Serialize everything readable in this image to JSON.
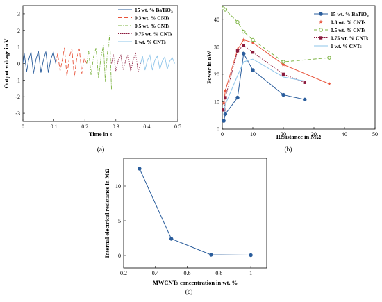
{
  "chart_data": [
    {
      "type": "line",
      "panel": "a",
      "caption": "(a)",
      "xlabel": "Time in s",
      "ylabel": "Output voltage in V",
      "xlim": [
        0,
        0.5
      ],
      "ylim": [
        -3.5,
        3.5
      ],
      "xticks": [
        "0",
        "0.1",
        "0.2",
        "0.3",
        "0.4",
        "0.5"
      ],
      "yticks": [
        "3",
        "2",
        "1",
        "0",
        "-1",
        "-2",
        "-3"
      ],
      "legend_position": "top-right",
      "series": [
        {
          "name": "15 wt. % BaTiO",
          "name_sub": "3",
          "color": "#2a5d9c",
          "dash": "solid",
          "x": [
            0.0,
            0.004,
            0.012,
            0.018,
            0.026,
            0.034,
            0.042,
            0.05,
            0.058,
            0.066,
            0.074,
            0.082,
            0.09,
            0.098,
            0.106
          ],
          "y": [
            0.0,
            0.65,
            -0.5,
            0.2,
            0.7,
            -0.6,
            0.25,
            0.75,
            -0.55,
            0.2,
            0.72,
            -0.55,
            0.25,
            0.7,
            0.0
          ]
        },
        {
          "name": "0.3 wt. % CNTs",
          "color": "#e8533a",
          "dash": "6,3",
          "x": [
            0.106,
            0.112,
            0.12,
            0.128,
            0.134,
            0.142,
            0.15,
            0.158,
            0.166,
            0.174,
            0.182,
            0.19,
            0.198,
            0.206
          ],
          "y": [
            0.0,
            0.6,
            -0.45,
            0.3,
            0.95,
            -0.75,
            0.4,
            0.9,
            -0.8,
            0.35,
            0.9,
            -0.6,
            0.3,
            0.0
          ]
        },
        {
          "name": "0.5 wt. % CNTs",
          "color": "#7cb342",
          "dash": "5,2,1,2",
          "x": [
            0.206,
            0.212,
            0.22,
            0.228,
            0.236,
            0.244,
            0.252,
            0.26,
            0.266,
            0.272,
            0.28,
            0.286
          ],
          "y": [
            0.0,
            0.8,
            -0.7,
            0.4,
            0.95,
            -0.9,
            0.4,
            1.1,
            -1.1,
            0.5,
            1.7,
            -1.6
          ]
        },
        {
          "name": "0.75 wt. % CNTs",
          "color": "#8b1a3c",
          "dash": "1.5,1.5",
          "x": [
            0.286,
            0.292,
            0.3,
            0.308,
            0.316,
            0.324,
            0.332,
            0.34,
            0.348,
            0.356,
            0.364,
            0.372,
            0.38
          ],
          "y": [
            0.0,
            0.55,
            -0.45,
            0.2,
            0.5,
            -0.4,
            0.2,
            0.55,
            -0.5,
            0.25,
            0.6,
            -0.5,
            0.0
          ]
        },
        {
          "name": "1 wt. % CNTs",
          "color": "#8ec5ea",
          "dash": "solid",
          "x": [
            0.38,
            0.386,
            0.394,
            0.402,
            0.41,
            0.418,
            0.426,
            0.434,
            0.442,
            0.45,
            0.458,
            0.466,
            0.474,
            0.482,
            0.49
          ],
          "y": [
            0.0,
            0.45,
            -0.4,
            0.2,
            0.5,
            -0.4,
            0.2,
            0.45,
            -0.35,
            0.15,
            0.4,
            -0.35,
            0.15,
            0.35,
            0.0
          ]
        }
      ]
    },
    {
      "type": "line",
      "panel": "b",
      "caption": "(b)",
      "xlabel": "Resistance in MΩ",
      "ylabel": "Power in nW",
      "xlim": [
        0,
        50
      ],
      "ylim": [
        0,
        45
      ],
      "xticks": [
        "0",
        "10",
        "20",
        "30",
        "40",
        "50"
      ],
      "yticks": [
        "0",
        "10",
        "20",
        "30",
        "40"
      ],
      "legend_position": "top-right",
      "series": [
        {
          "name": "15 wt. % BaTiO",
          "name_sub": "3",
          "color": "#2a5d9c",
          "marker": "circle",
          "dash": "solid",
          "x": [
            0.5,
            1,
            5,
            7,
            10,
            20,
            27
          ],
          "y": [
            3,
            5.5,
            11.5,
            27.5,
            21.5,
            12.5,
            10.8
          ]
        },
        {
          "name": "0.3 wt. % CNTs",
          "color": "#e8533a",
          "marker": "star",
          "dash": "solid",
          "x": [
            0.5,
            1,
            5,
            7,
            10,
            20,
            35
          ],
          "y": [
            9.5,
            14,
            29,
            32.5,
            31.5,
            23.5,
            16.5
          ]
        },
        {
          "name": "0.5 wt. % CNTs",
          "color": "#7cb342",
          "marker": "circle-open",
          "dash": "5,3",
          "x": [
            0.3,
            1,
            5,
            7,
            10,
            20,
            35
          ],
          "y": [
            44,
            43.5,
            39,
            35.5,
            32.5,
            24.5,
            26
          ]
        },
        {
          "name": "0.75 wt. % CNTs",
          "color": "#8b1a3c",
          "marker": "square",
          "dash": "1.5,1.5",
          "x": [
            0.5,
            1,
            5,
            7,
            10,
            20,
            27
          ],
          "y": [
            7,
            11.5,
            28.5,
            30.5,
            28,
            20,
            17
          ]
        },
        {
          "name": "1 wt. % CNTs",
          "color": "#8ec5ea",
          "marker": "none",
          "dash": "solid",
          "x": [
            0.5,
            1,
            5,
            7,
            10,
            20,
            27
          ],
          "y": [
            5,
            9,
            19.5,
            24.5,
            25.5,
            19,
            17.5
          ]
        }
      ]
    },
    {
      "type": "line",
      "panel": "c",
      "caption": "(c)",
      "xlabel": "MWCNTs concentration in wt. %",
      "ylabel": "Internal electrical resistance in MΩ",
      "xlim": [
        0.2,
        1.1
      ],
      "ylim": [
        -1.8,
        14
      ],
      "xticks": [
        "0.2",
        "0.4",
        "0.6",
        "0.8",
        "1"
      ],
      "yticks": [
        "0",
        "5",
        "10"
      ],
      "series": [
        {
          "color": "#2a5d9c",
          "marker": "circle",
          "dash": "solid",
          "x": [
            0.3,
            0.5,
            0.75,
            1.0
          ],
          "y": [
            12.5,
            2.4,
            0.1,
            0.05
          ]
        }
      ]
    }
  ]
}
